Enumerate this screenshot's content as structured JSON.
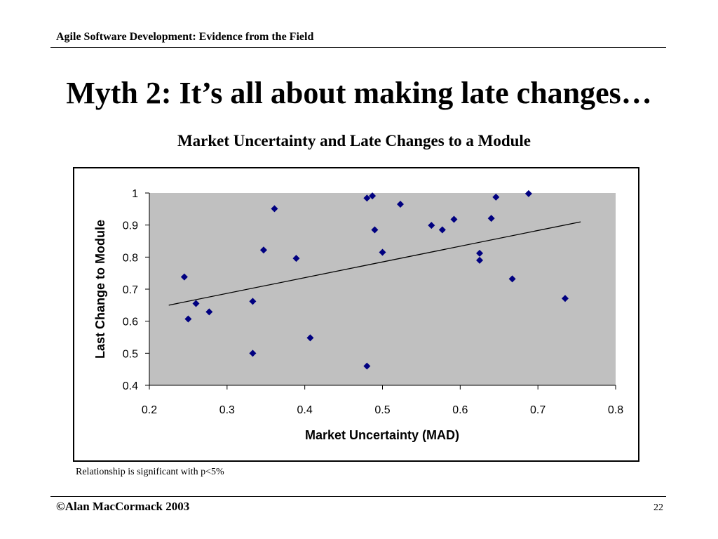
{
  "header": {
    "text": "Agile Software Development:  Evidence from the Field"
  },
  "slide": {
    "title": "Myth 2: It’s all about making late changes…"
  },
  "chart_data": {
    "type": "scatter",
    "title": "Market Uncertainty and Late Changes to a Module",
    "xlabel": "Market Uncertainty (MAD)",
    "ylabel": "Last Change to Module",
    "xlim": [
      0.2,
      0.8
    ],
    "ylim": [
      0.4,
      1.0
    ],
    "x_ticks": [
      "0.2",
      "0.3",
      "0.4",
      "0.5",
      "0.6",
      "0.7",
      "0.8"
    ],
    "y_ticks": [
      "0.4",
      "0.5",
      "0.6",
      "0.7",
      "0.8",
      "0.9",
      "1"
    ],
    "grid": false,
    "legend": "none",
    "plot_background": "#c0c0c0",
    "marker_color": "#000080",
    "marker_shape": "diamond",
    "points": [
      {
        "x": 0.245,
        "y": 0.738
      },
      {
        "x": 0.25,
        "y": 0.607
      },
      {
        "x": 0.26,
        "y": 0.655
      },
      {
        "x": 0.277,
        "y": 0.629
      },
      {
        "x": 0.333,
        "y": 0.662
      },
      {
        "x": 0.333,
        "y": 0.5
      },
      {
        "x": 0.347,
        "y": 0.822
      },
      {
        "x": 0.361,
        "y": 0.951
      },
      {
        "x": 0.389,
        "y": 0.796
      },
      {
        "x": 0.407,
        "y": 0.548
      },
      {
        "x": 0.48,
        "y": 0.984
      },
      {
        "x": 0.487,
        "y": 0.991
      },
      {
        "x": 0.49,
        "y": 0.885
      },
      {
        "x": 0.48,
        "y": 0.46
      },
      {
        "x": 0.5,
        "y": 0.815
      },
      {
        "x": 0.523,
        "y": 0.965
      },
      {
        "x": 0.563,
        "y": 0.899
      },
      {
        "x": 0.577,
        "y": 0.885
      },
      {
        "x": 0.592,
        "y": 0.918
      },
      {
        "x": 0.625,
        "y": 0.812
      },
      {
        "x": 0.625,
        "y": 0.79
      },
      {
        "x": 0.64,
        "y": 0.921
      },
      {
        "x": 0.646,
        "y": 0.987
      },
      {
        "x": 0.667,
        "y": 0.732
      },
      {
        "x": 0.688,
        "y": 0.998
      },
      {
        "x": 0.735,
        "y": 0.671
      }
    ],
    "trendline": {
      "type": "linear",
      "x": [
        0.225,
        0.755
      ],
      "y": [
        0.65,
        0.91
      ]
    },
    "note": "Relationship is significant with p<5%"
  },
  "footer": {
    "copyright": "©Alan MacCormack 2003",
    "page": "22"
  }
}
